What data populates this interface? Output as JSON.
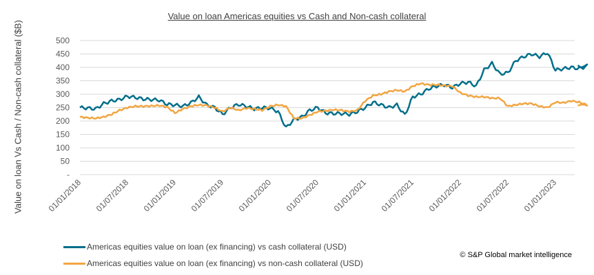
{
  "chart_data": {
    "type": "line",
    "title": "Value on loan Americas equities vs Cash and Non-cash collateral",
    "ylabel": "Value on loan Vs Cash / Non-cash collateral ($B)",
    "xlabel": "",
    "ylim": [
      0,
      500
    ],
    "yticks": [
      0,
      50,
      100,
      150,
      200,
      250,
      300,
      350,
      400,
      450,
      500
    ],
    "ytick_labels": [
      "-",
      "50",
      "100",
      "150",
      "200",
      "250",
      "300",
      "350",
      "400",
      "450",
      "500"
    ],
    "xtick_labels": [
      "01/01/2018",
      "01/07/2018",
      "01/01/2019",
      "01/07/2019",
      "01/01/2020",
      "01/07/2020",
      "01/01/2021",
      "01/07/2021",
      "01/01/2022",
      "01/07/2022",
      "01/01/2023"
    ],
    "grid": true,
    "legend_position": "bottom-left",
    "x": [
      "2018-01",
      "2018-02",
      "2018-03",
      "2018-04",
      "2018-05",
      "2018-06",
      "2018-07",
      "2018-08",
      "2018-09",
      "2018-10",
      "2018-11",
      "2018-12",
      "2019-01",
      "2019-02",
      "2019-03",
      "2019-04",
      "2019-05",
      "2019-06",
      "2019-07",
      "2019-08",
      "2019-09",
      "2019-10",
      "2019-11",
      "2019-12",
      "2020-01",
      "2020-02",
      "2020-03",
      "2020-04",
      "2020-05",
      "2020-06",
      "2020-07",
      "2020-08",
      "2020-09",
      "2020-10",
      "2020-11",
      "2020-12",
      "2021-01",
      "2021-02",
      "2021-03",
      "2021-04",
      "2021-05",
      "2021-06",
      "2021-07",
      "2021-08",
      "2021-09",
      "2021-10",
      "2021-11",
      "2021-12",
      "2022-01",
      "2022-02",
      "2022-03",
      "2022-04",
      "2022-05",
      "2022-06",
      "2022-07",
      "2022-08",
      "2022-09",
      "2022-10",
      "2022-11",
      "2022-12",
      "2023-01",
      "2023-02",
      "2023-03",
      "2023-04",
      "2023-05"
    ],
    "series": [
      {
        "name": "Americas equities value on loan (ex financing) vs cash collateral (USD)",
        "color": "#006e8a",
        "values": [
          250,
          248,
          245,
          265,
          275,
          280,
          292,
          288,
          282,
          280,
          278,
          262,
          260,
          255,
          268,
          290,
          260,
          250,
          225,
          250,
          262,
          255,
          245,
          250,
          248,
          235,
          175,
          205,
          215,
          240,
          250,
          230,
          228,
          228,
          225,
          235,
          250,
          270,
          260,
          250,
          260,
          222,
          290,
          300,
          320,
          330,
          335,
          325,
          340,
          345,
          330,
          390,
          415,
          375,
          380,
          425,
          440,
          450,
          440,
          455,
          390,
          395,
          400,
          395,
          405
        ]
      },
      {
        "name": "Americas equities value on loan (ex financing) vs non-cash collateral (USD)",
        "color": "#f2a541",
        "values": [
          215,
          212,
          210,
          215,
          225,
          240,
          250,
          255,
          255,
          256,
          258,
          252,
          230,
          245,
          255,
          260,
          258,
          250,
          235,
          250,
          240,
          248,
          245,
          240,
          255,
          260,
          255,
          210,
          210,
          222,
          235,
          238,
          242,
          240,
          235,
          240,
          275,
          295,
          300,
          310,
          315,
          310,
          330,
          340,
          335,
          335,
          332,
          330,
          305,
          295,
          290,
          290,
          285,
          285,
          255,
          260,
          265,
          265,
          255,
          250,
          270,
          268,
          275,
          270,
          260
        ]
      }
    ]
  },
  "copyright": "© S&P Global market intelligence"
}
